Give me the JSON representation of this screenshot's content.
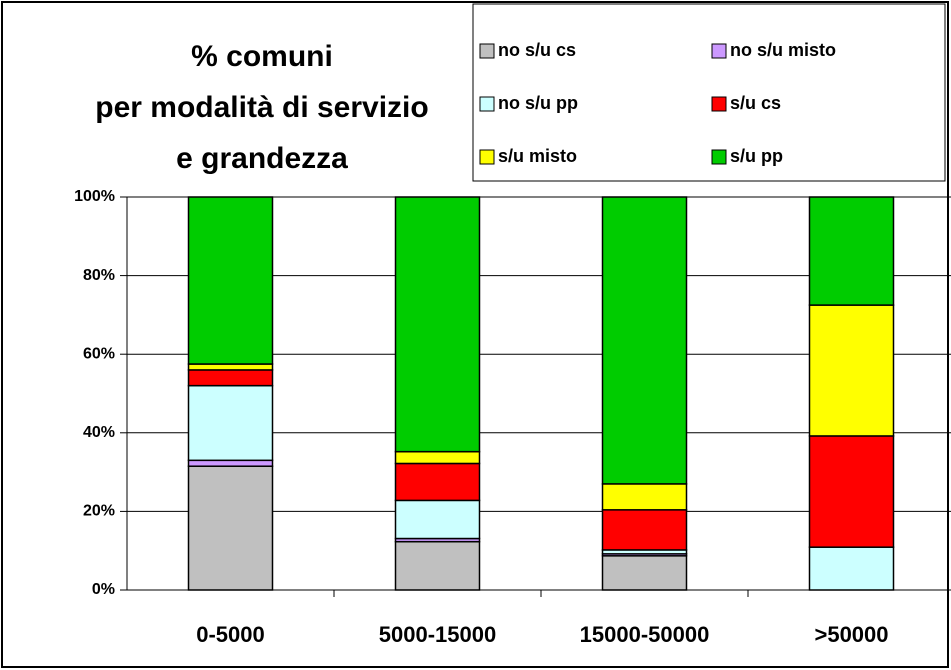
{
  "chart_data": {
    "type": "stacked_bar",
    "title": [
      "% comuni",
      "per modalità di servizio",
      "e grandezza"
    ],
    "categories": [
      "0-5000",
      "5000-15000",
      "15000-50000",
      ">50000"
    ],
    "series": [
      {
        "name": "no s/u cs",
        "color": "#c0c0c0",
        "values": [
          31.5,
          12.3,
          8.7,
          0
        ]
      },
      {
        "name": "no s/u misto",
        "color": "#cc99ff",
        "values": [
          1.5,
          0.8,
          0.5,
          0
        ]
      },
      {
        "name": "no s/u pp",
        "color": "#ccffff",
        "values": [
          19,
          9.7,
          1,
          10.9
        ]
      },
      {
        "name": "s/u cs",
        "color": "#ff0000",
        "values": [
          4,
          9.4,
          10.2,
          28.3
        ]
      },
      {
        "name": "s/u misto",
        "color": "#ffff00",
        "values": [
          1.5,
          3,
          6.6,
          33.3
        ]
      },
      {
        "name": "s/u pp",
        "color": "#00cc00",
        "values": [
          42.5,
          64.8,
          73,
          27.5
        ]
      }
    ],
    "ylim": [
      0,
      100
    ],
    "yticks": [
      {
        "value": 0,
        "label": "0%"
      },
      {
        "value": 20,
        "label": "20%"
      },
      {
        "value": 40,
        "label": "40%"
      },
      {
        "value": 60,
        "label": "60%"
      },
      {
        "value": 80,
        "label": "80%"
      },
      {
        "value": 100,
        "label": "100%"
      }
    ],
    "grid": true
  }
}
